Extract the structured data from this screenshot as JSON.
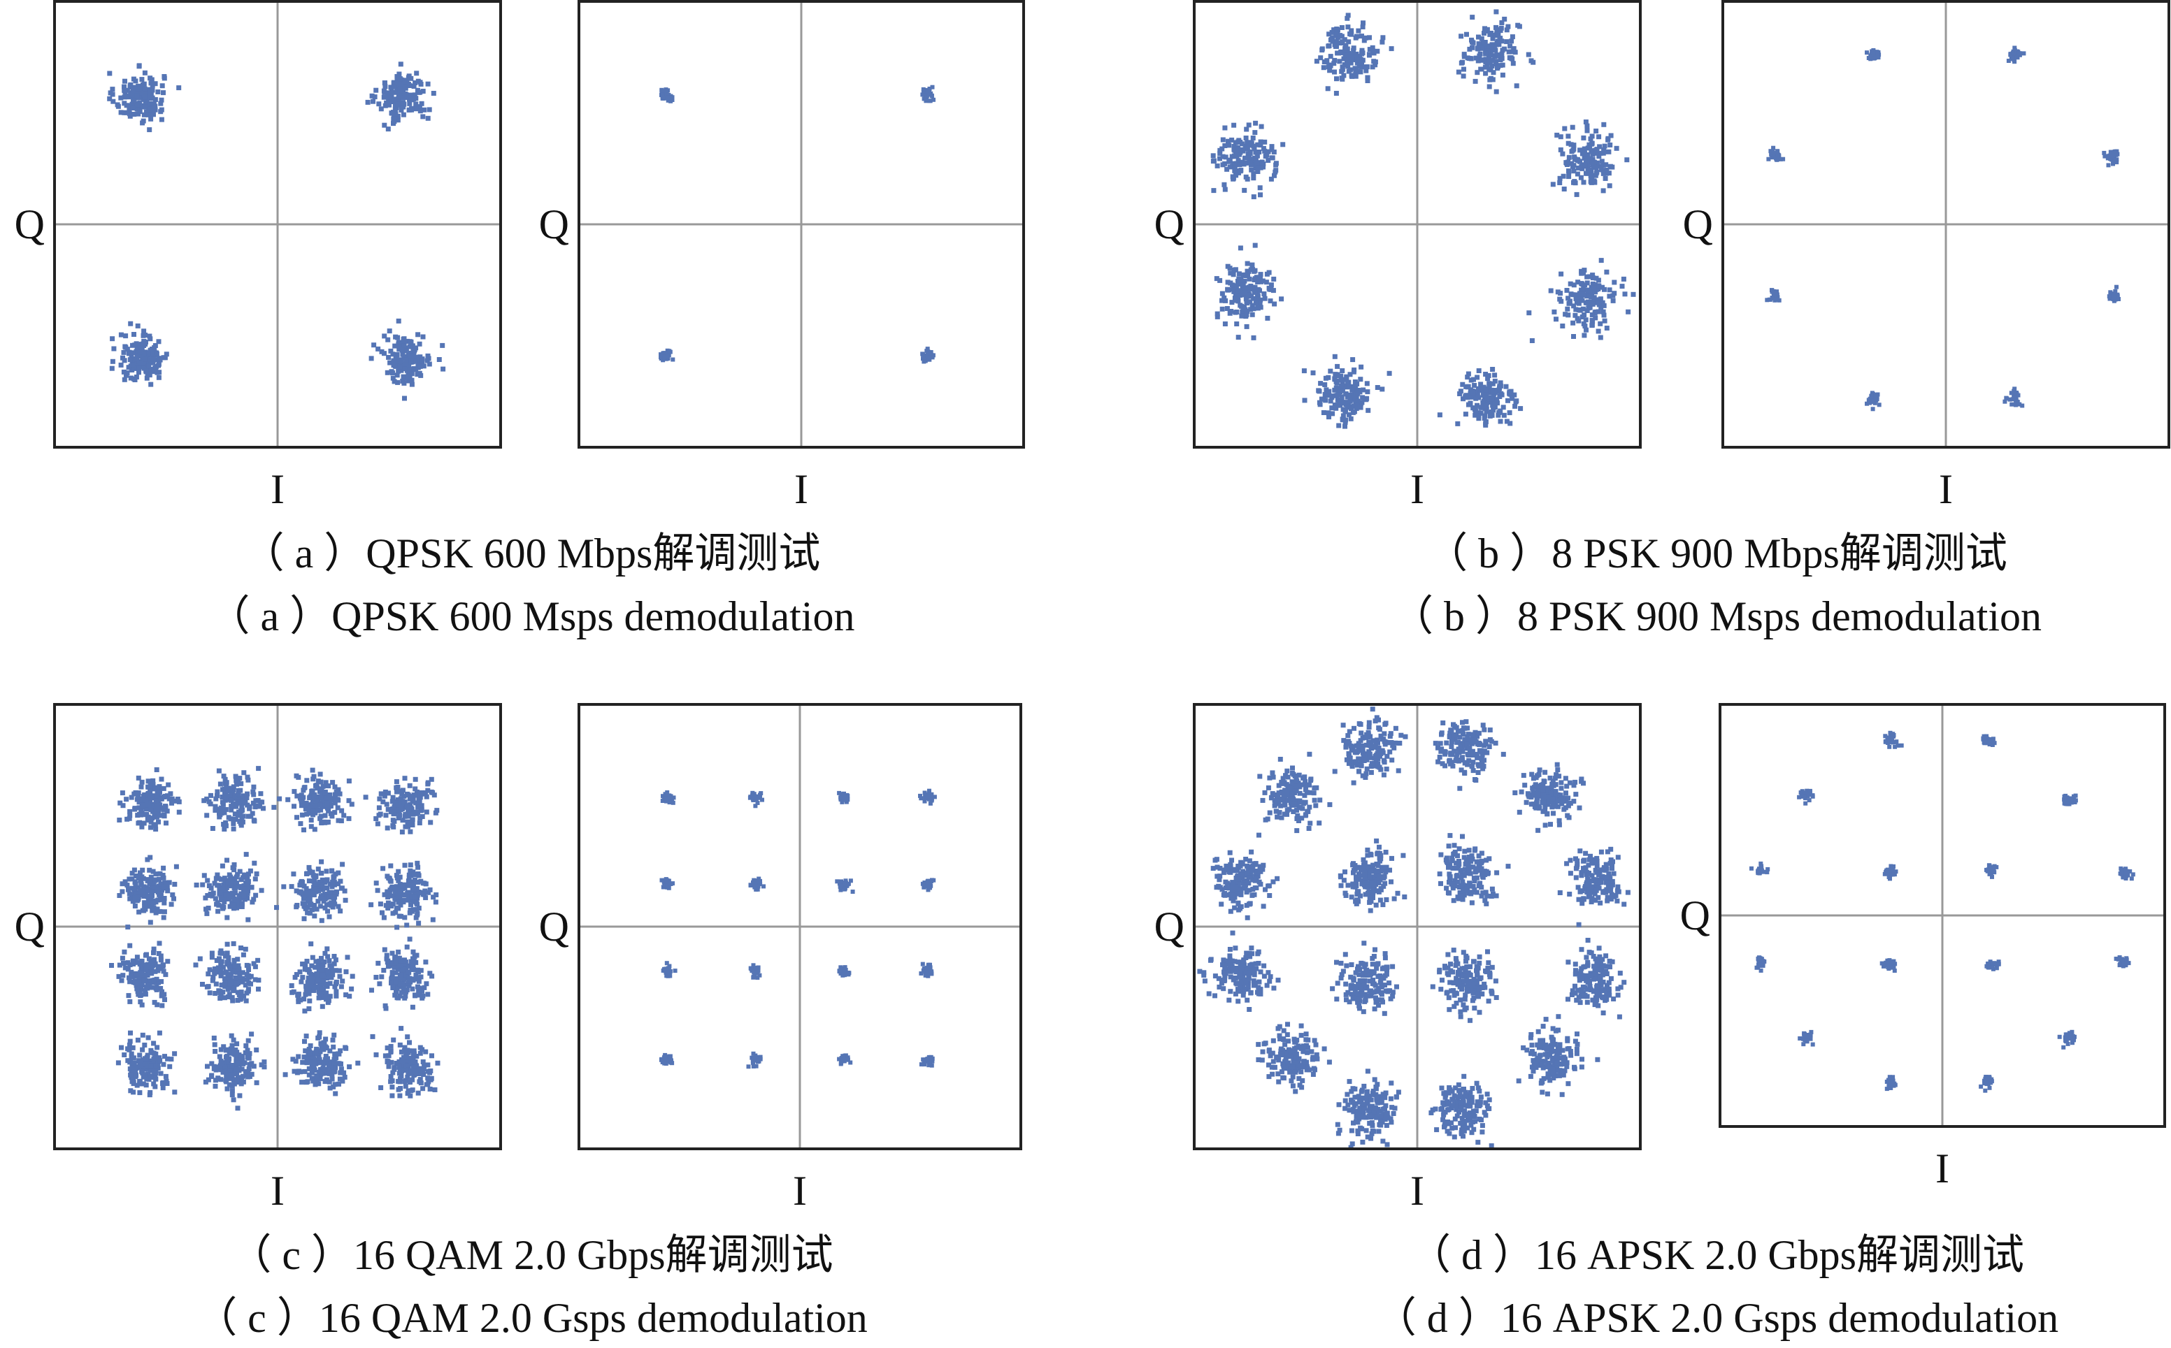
{
  "figure": {
    "marker_color": "#5575b5",
    "axis_color": "#999999",
    "frame_color": "#222222",
    "panels": [
      {
        "id": "a",
        "caption_cn": "（ a ）QPSK 600 Mbps解调测试",
        "caption_en": "（ a ）QPSK 600 Msps demodulation",
        "plots": [
          {
            "modulation": "QPSK",
            "stage": "before",
            "xlabel": "I",
            "ylabel": "Q",
            "spread": 0.11
          },
          {
            "modulation": "QPSK",
            "stage": "after",
            "xlabel": "I",
            "ylabel": "Q",
            "spread": 0.028
          }
        ]
      },
      {
        "id": "b",
        "caption_cn": "（ b ）8 PSK 900 Mbps解调测试",
        "caption_en": "（ b ）8 PSK 900 Msps demodulation",
        "plots": [
          {
            "modulation": "8PSK",
            "stage": "before",
            "xlabel": "I",
            "ylabel": "Q",
            "spread": 0.13
          },
          {
            "modulation": "8PSK",
            "stage": "after",
            "xlabel": "I",
            "ylabel": "Q",
            "spread": 0.03
          }
        ]
      },
      {
        "id": "c",
        "caption_cn": "（ c ）16 QAM 2.0 Gbps解调测试",
        "caption_en": "（ c ）16 QAM 2.0 Gsps demodulation",
        "plots": [
          {
            "modulation": "16QAM",
            "stage": "before",
            "xlabel": "I",
            "ylabel": "Q",
            "spread": 0.11
          },
          {
            "modulation": "16QAM",
            "stage": "after",
            "xlabel": "I",
            "ylabel": "Q",
            "spread": 0.025
          }
        ]
      },
      {
        "id": "d",
        "caption_cn": "（ d ）16 APSK 2.0 Gbps解调测试",
        "caption_en": "（ d ）16 APSK 2.0 Gsps demodulation",
        "plots": [
          {
            "modulation": "16APSK",
            "stage": "before",
            "xlabel": "I",
            "ylabel": "Q",
            "spread": 0.12
          },
          {
            "modulation": "16APSK",
            "stage": "after",
            "xlabel": "I",
            "ylabel": "Q",
            "spread": 0.028
          }
        ]
      }
    ]
  },
  "chart_data": [
    {
      "type": "scatter",
      "title": "",
      "xlabel": "I",
      "ylabel": "Q",
      "xlim": [
        -1,
        1
      ],
      "ylim": [
        -1,
        1
      ],
      "series": [
        {
          "values": [
            [
              -0.62,
              0.57
            ],
            [
              0.56,
              0.57
            ],
            [
              -0.6,
              -0.6
            ],
            [
              0.58,
              -0.6
            ]
          ]
        }
      ]
    },
    {
      "type": "scatter",
      "title": "",
      "xlabel": "I",
      "ylabel": "Q",
      "xlim": [
        -1,
        1
      ],
      "ylim": [
        -1,
        1
      ],
      "series": [
        {
          "values": [
            [
              -0.61,
              0.58
            ],
            [
              0.57,
              0.58
            ],
            [
              -0.61,
              -0.59
            ],
            [
              0.57,
              -0.59
            ]
          ]
        }
      ]
    },
    {
      "type": "scatter",
      "title": "",
      "xlabel": "I",
      "ylabel": "Q",
      "xlim": [
        -1,
        1
      ],
      "ylim": [
        -1,
        1
      ],
      "series": [
        {
          "values": [
            [
              -0.3,
              0.77
            ],
            [
              0.33,
              0.77
            ],
            [
              -0.77,
              0.3
            ],
            [
              0.77,
              0.29
            ],
            [
              -0.77,
              -0.31
            ],
            [
              0.77,
              -0.34
            ],
            [
              -0.33,
              -0.76
            ],
            [
              0.31,
              -0.79
            ]
          ]
        }
      ]
    },
    {
      "type": "scatter",
      "title": "",
      "xlabel": "I",
      "ylabel": "Q",
      "xlim": [
        -1,
        1
      ],
      "ylim": [
        -1,
        1
      ],
      "series": [
        {
          "values": [
            [
              -0.32,
              0.76
            ],
            [
              0.31,
              0.76
            ],
            [
              -0.77,
              0.31
            ],
            [
              0.75,
              0.3
            ],
            [
              -0.77,
              -0.32
            ],
            [
              0.75,
              -0.32
            ],
            [
              -0.32,
              -0.78
            ],
            [
              0.31,
              -0.78
            ]
          ]
        }
      ]
    },
    {
      "type": "scatter",
      "title": "",
      "xlabel": "I",
      "ylabel": "Q",
      "xlim": [
        -1,
        1
      ],
      "ylim": [
        -1,
        1
      ],
      "series": [
        {
          "values": [
            [
              -0.57,
              0.55
            ],
            [
              -0.19,
              0.56
            ],
            [
              0.19,
              0.57
            ],
            [
              0.57,
              0.55
            ],
            [
              -0.58,
              0.16
            ],
            [
              -0.21,
              0.16
            ],
            [
              0.18,
              0.16
            ],
            [
              0.58,
              0.15
            ],
            [
              -0.59,
              -0.22
            ],
            [
              -0.21,
              -0.22
            ],
            [
              0.19,
              -0.23
            ],
            [
              0.57,
              -0.22
            ],
            [
              -0.59,
              -0.63
            ],
            [
              -0.2,
              -0.63
            ],
            [
              0.19,
              -0.62
            ],
            [
              0.59,
              -0.63
            ]
          ]
        }
      ]
    },
    {
      "type": "scatter",
      "title": "",
      "xlabel": "I",
      "ylabel": "Q",
      "xlim": [
        -1,
        1
      ],
      "ylim": [
        -1,
        1
      ],
      "series": [
        {
          "values": [
            [
              -0.6,
              0.58
            ],
            [
              -0.2,
              0.58
            ],
            [
              0.2,
              0.58
            ],
            [
              0.58,
              0.58
            ],
            [
              -0.6,
              0.19
            ],
            [
              -0.2,
              0.19
            ],
            [
              0.2,
              0.19
            ],
            [
              0.58,
              0.19
            ],
            [
              -0.6,
              -0.2
            ],
            [
              -0.2,
              -0.2
            ],
            [
              0.2,
              -0.2
            ],
            [
              0.58,
              -0.2
            ],
            [
              -0.6,
              -0.6
            ],
            [
              -0.2,
              -0.6
            ],
            [
              0.2,
              -0.6
            ],
            [
              0.58,
              -0.6
            ]
          ]
        }
      ]
    },
    {
      "type": "scatter",
      "title": "",
      "xlabel": "I",
      "ylabel": "Q",
      "xlim": [
        -1,
        1
      ],
      "ylim": [
        -1,
        1
      ],
      "series": [
        {
          "values": [
            [
              -0.21,
              0.8
            ],
            [
              0.21,
              0.8
            ],
            [
              -0.56,
              0.59
            ],
            [
              0.59,
              0.59
            ],
            [
              -0.8,
              0.2
            ],
            [
              0.8,
              0.2
            ],
            [
              -0.8,
              -0.22
            ],
            [
              0.8,
              -0.24
            ],
            [
              -0.56,
              -0.59
            ],
            [
              0.59,
              -0.6
            ],
            [
              -0.21,
              -0.83
            ],
            [
              0.2,
              -0.82
            ],
            [
              -0.22,
              0.23
            ],
            [
              0.22,
              0.23
            ],
            [
              -0.22,
              -0.25
            ],
            [
              0.22,
              -0.25
            ]
          ]
        }
      ]
    },
    {
      "type": "scatter",
      "title": "",
      "xlabel": "I",
      "ylabel": "Q",
      "xlim": [
        -1,
        1
      ],
      "ylim": [
        -1,
        1
      ],
      "series": [
        {
          "values": [
            [
              -0.23,
              0.83
            ],
            [
              0.2,
              0.83
            ],
            [
              -0.61,
              0.57
            ],
            [
              0.57,
              0.55
            ],
            [
              -0.82,
              0.21
            ],
            [
              0.82,
              0.2
            ],
            [
              -0.82,
              -0.22
            ],
            [
              0.81,
              -0.22
            ],
            [
              -0.61,
              -0.58
            ],
            [
              0.57,
              -0.58
            ],
            [
              -0.23,
              -0.79
            ],
            [
              0.2,
              -0.79
            ],
            [
              -0.23,
              0.21
            ],
            [
              0.22,
              0.21
            ],
            [
              -0.23,
              -0.24
            ],
            [
              0.22,
              -0.24
            ]
          ]
        }
      ]
    }
  ]
}
